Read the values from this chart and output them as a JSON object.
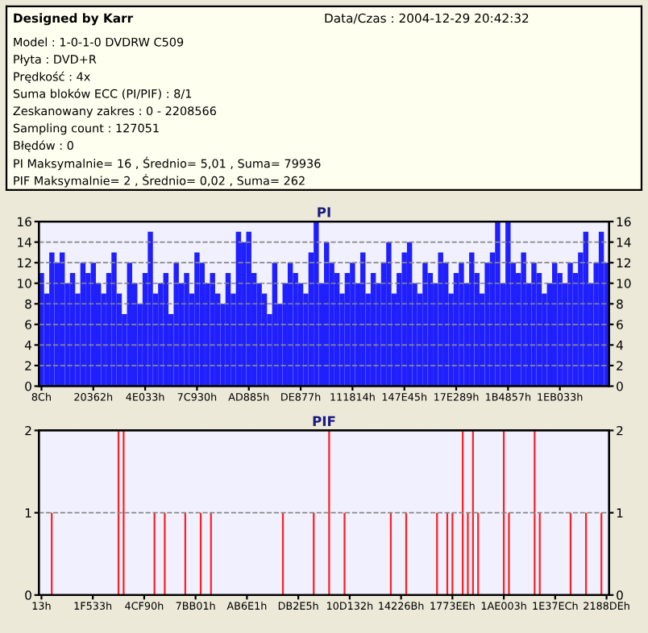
{
  "chart_data": [
    {
      "type": "other",
      "title": "Designed by Karr",
      "annotations": [
        "Data/Czas : 2004-12-29 20:42:32",
        "Model : 1-0-1-0 DVDRW C509",
        "Płyta : DVD+R",
        "Prędkość : 4x",
        "Suma bloków ECC (PI/PIF) : 8/1",
        "Zeskanowany zakres : 0 - 2208566",
        "Sampling count : 127051",
        "Błędów : 0",
        "PI Maksymalnie= 16 , Średnio= 5,01 , Suma= 79936",
        "PIF Maksymalnie= 2 , Średnio= 0,02 , Suma= 262"
      ]
    },
    {
      "type": "bar",
      "title": "PI",
      "color": "#2020ff",
      "categories": [
        "8Ch",
        null,
        null,
        null,
        null,
        null,
        null,
        null,
        null,
        null,
        "20362h",
        null,
        null,
        null,
        null,
        null,
        null,
        null,
        null,
        null,
        "4E033h",
        null,
        null,
        null,
        null,
        null,
        null,
        null,
        null,
        null,
        "7C930h",
        null,
        null,
        null,
        null,
        null,
        null,
        null,
        null,
        null,
        "AD885h",
        null,
        null,
        null,
        null,
        null,
        null,
        null,
        null,
        null,
        "DE877h",
        null,
        null,
        null,
        null,
        null,
        null,
        null,
        null,
        null,
        "111814h",
        null,
        null,
        null,
        null,
        null,
        null,
        null,
        null,
        null,
        "147E45h",
        null,
        null,
        null,
        null,
        null,
        null,
        null,
        null,
        null,
        "17E289h",
        null,
        null,
        null,
        null,
        null,
        null,
        null,
        null,
        null,
        "1B4857h",
        null,
        null,
        null,
        null,
        null,
        null,
        null,
        null,
        null,
        "1EB033h",
        null,
        null,
        null,
        null,
        null,
        null,
        null,
        null,
        null
      ],
      "values": [
        11,
        9,
        13,
        12,
        13,
        10,
        11,
        9,
        12,
        11,
        12,
        10,
        9,
        11,
        13,
        9,
        7,
        12,
        10,
        8,
        11,
        15,
        9,
        10,
        11,
        7,
        12,
        10,
        11,
        9,
        13,
        12,
        10,
        11,
        9,
        8,
        11,
        9,
        15,
        14,
        15,
        11,
        10,
        9,
        7,
        12,
        8,
        10,
        12,
        11,
        10,
        9,
        13,
        16,
        10,
        14,
        12,
        11,
        9,
        11,
        12,
        10,
        13,
        9,
        11,
        10,
        12,
        14,
        9,
        11,
        13,
        14,
        10,
        9,
        12,
        11,
        10,
        13,
        12,
        9,
        11,
        12,
        10,
        13,
        11,
        9,
        12,
        13,
        16,
        10,
        16,
        12,
        11,
        13,
        10,
        12,
        11,
        9,
        10,
        12,
        11,
        10,
        12,
        11,
        13,
        15,
        10,
        12,
        15,
        12
      ],
      "ylim": [
        0,
        16
      ],
      "yticks": [
        0,
        2,
        4,
        6,
        8,
        10,
        12,
        14,
        16
      ],
      "y2lim": [
        0,
        16
      ],
      "y2ticks": [
        0,
        2,
        4,
        6,
        8,
        10,
        12,
        14,
        16
      ],
      "grid": "y"
    },
    {
      "type": "bar",
      "title": "PIF",
      "color": "#ff2020",
      "categories": [
        "13h",
        null,
        null,
        null,
        null,
        null,
        null,
        null,
        null,
        null,
        "1F533h",
        null,
        null,
        null,
        null,
        null,
        null,
        null,
        null,
        null,
        "4CF90h",
        null,
        null,
        null,
        null,
        null,
        null,
        null,
        null,
        null,
        "7BB01h",
        null,
        null,
        null,
        null,
        null,
        null,
        null,
        null,
        null,
        "AB6E1h",
        null,
        null,
        null,
        null,
        null,
        null,
        null,
        null,
        null,
        "DB2E5h",
        null,
        null,
        null,
        null,
        null,
        null,
        null,
        null,
        null,
        "10D132h",
        null,
        null,
        null,
        null,
        null,
        null,
        null,
        null,
        null,
        "14226Bh",
        null,
        null,
        null,
        null,
        null,
        null,
        null,
        null,
        null,
        "1773EEh",
        null,
        null,
        null,
        null,
        null,
        null,
        null,
        null,
        null,
        "1AE003h",
        null,
        null,
        null,
        null,
        null,
        null,
        null,
        null,
        null,
        "1E37ECh",
        null,
        null,
        null,
        null,
        null,
        null,
        null,
        null,
        null,
        "2188DEh"
      ],
      "values": [
        0,
        0,
        1,
        0,
        0,
        0,
        0,
        0,
        0,
        0,
        0,
        0,
        0,
        0,
        0,
        2,
        2,
        0,
        0,
        0,
        0,
        0,
        1,
        0,
        1,
        0,
        0,
        0,
        1,
        0,
        0,
        1,
        0,
        1,
        0,
        0,
        0,
        0,
        0,
        0,
        0,
        0,
        0,
        0,
        0,
        0,
        0,
        1,
        0,
        0,
        0,
        0,
        0,
        1,
        0,
        0,
        2,
        0,
        0,
        1,
        0,
        0,
        0,
        0,
        0,
        0,
        0,
        0,
        1,
        0,
        0,
        1,
        0,
        0,
        0,
        0,
        0,
        1,
        0,
        1,
        1,
        0,
        2,
        1,
        2,
        1,
        0,
        0,
        0,
        0,
        2,
        1,
        0,
        0,
        0,
        0,
        2,
        1,
        0,
        0,
        0,
        0,
        0,
        1,
        0,
        0,
        1,
        0,
        0,
        1,
        0
      ],
      "ylim": [
        0,
        2
      ],
      "yticks": [
        0,
        1,
        2
      ],
      "y2lim": [
        0,
        2
      ],
      "y2ticks": [
        0,
        1,
        2
      ],
      "grid": "y"
    }
  ]
}
